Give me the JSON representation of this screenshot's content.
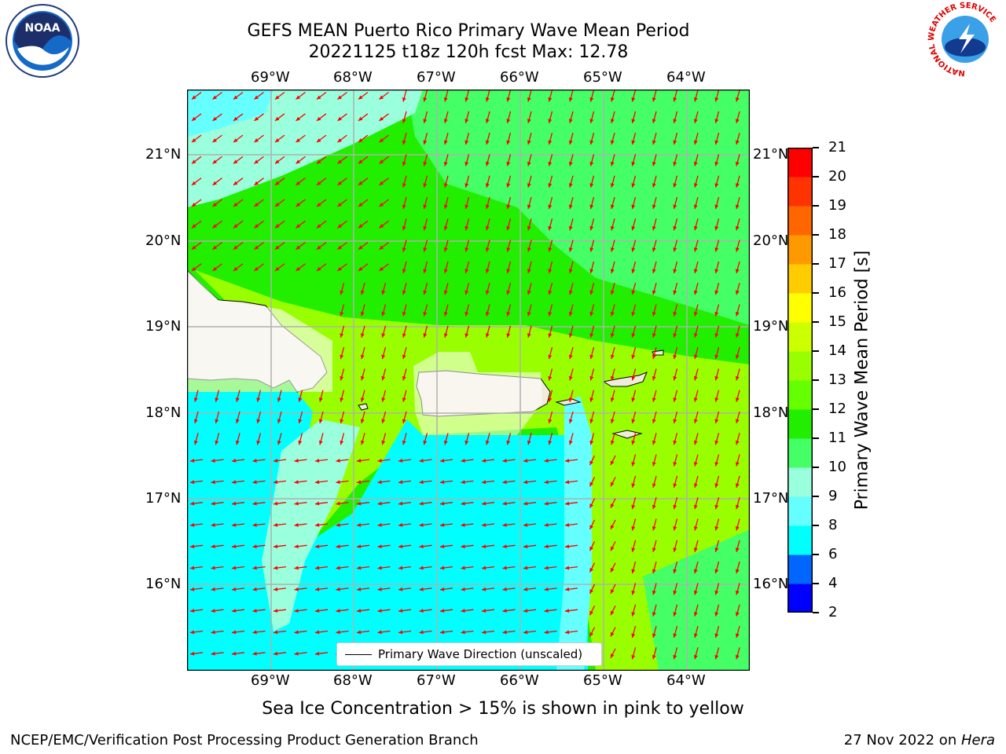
{
  "title_line1": "GEFS MEAN Puerto Rico Primary Wave Mean Period",
  "title_line2": "20221125 t18z 120h fcst   Max: 12.78",
  "lon_labels": [
    "69°W",
    "68°W",
    "67°W",
    "66°W",
    "65°W",
    "64°W"
  ],
  "lat_labels": [
    "21°N",
    "20°N",
    "19°N",
    "18°N",
    "17°N",
    "16°N"
  ],
  "legend_label": "Primary Wave Direction (unscaled)",
  "caption": "Sea Ice Concentration > 15% is shown in pink to yellow",
  "footer_left": "NCEP/EMC/Verification Post Processing Product Generation Branch",
  "footer_date": "27 Nov 2022 on ",
  "footer_host": "Hera",
  "colorbar": {
    "label": "Primary Wave Mean Period [s]",
    "ticks": [
      "2",
      "4",
      "6",
      "8",
      "9",
      "10",
      "11",
      "12",
      "13",
      "14",
      "15",
      "16",
      "17",
      "18",
      "19",
      "20",
      "21"
    ],
    "colors": [
      "#0000ff",
      "#0066ff",
      "#00ffff",
      "#66ffff",
      "#99ffdd",
      "#44ff66",
      "#22ee00",
      "#66ff00",
      "#99ff00",
      "#ccff00",
      "#ffff00",
      "#ffcc00",
      "#ff9900",
      "#ff6600",
      "#ff3300",
      "#ff0000"
    ]
  },
  "logos": {
    "left": "NOAA",
    "right": "NATIONAL WEATHER SERVICE"
  },
  "colors": {
    "land": "#efecdc",
    "arrow": "#ff0000",
    "grid": "#b0b0b0"
  }
}
